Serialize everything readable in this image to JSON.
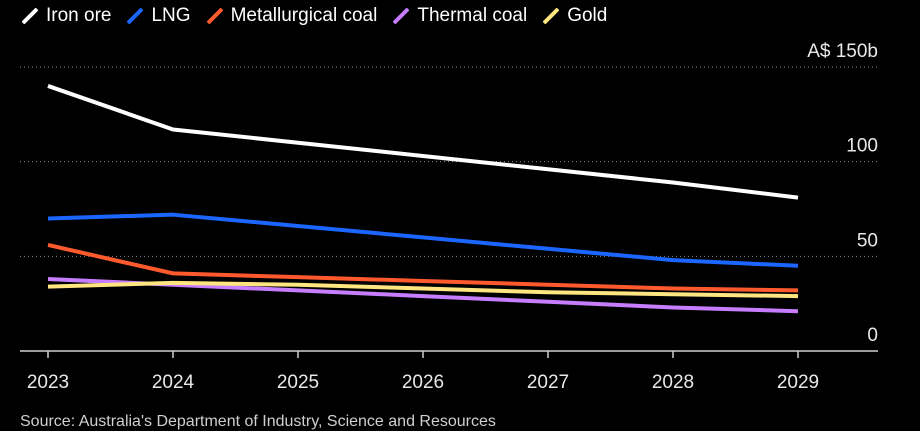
{
  "chart_data": {
    "type": "line",
    "title": "",
    "xlabel": "",
    "ylabel": "A$ billions",
    "categories": [
      "2023",
      "2024",
      "2025",
      "2026",
      "2027",
      "2028",
      "2029"
    ],
    "ylim": [
      0,
      150
    ],
    "y_ticks": [
      0,
      50,
      100,
      150
    ],
    "y_tick_labels": [
      "0",
      "50",
      "100",
      "A$ 150b"
    ],
    "grid": true,
    "legend_position": "top-left",
    "series": [
      {
        "name": "Iron ore",
        "color": "#ffffff",
        "values": [
          140,
          117,
          110,
          103,
          96,
          89,
          81
        ]
      },
      {
        "name": "LNG",
        "color": "#1a66ff",
        "values": [
          70,
          72,
          66,
          60,
          54,
          48,
          45
        ]
      },
      {
        "name": "Metallurgical coal",
        "color": "#ff5a2e",
        "values": [
          56,
          41,
          39,
          37,
          35,
          33,
          32
        ]
      },
      {
        "name": "Thermal coal",
        "color": "#c77dff",
        "values": [
          38,
          35,
          32,
          29,
          26,
          23,
          21
        ]
      },
      {
        "name": "Gold",
        "color": "#ffe680",
        "values": [
          34,
          36,
          35,
          33,
          31,
          30,
          29
        ]
      }
    ]
  },
  "source": "Source: Australia's Department of Industry, Science and Resources"
}
